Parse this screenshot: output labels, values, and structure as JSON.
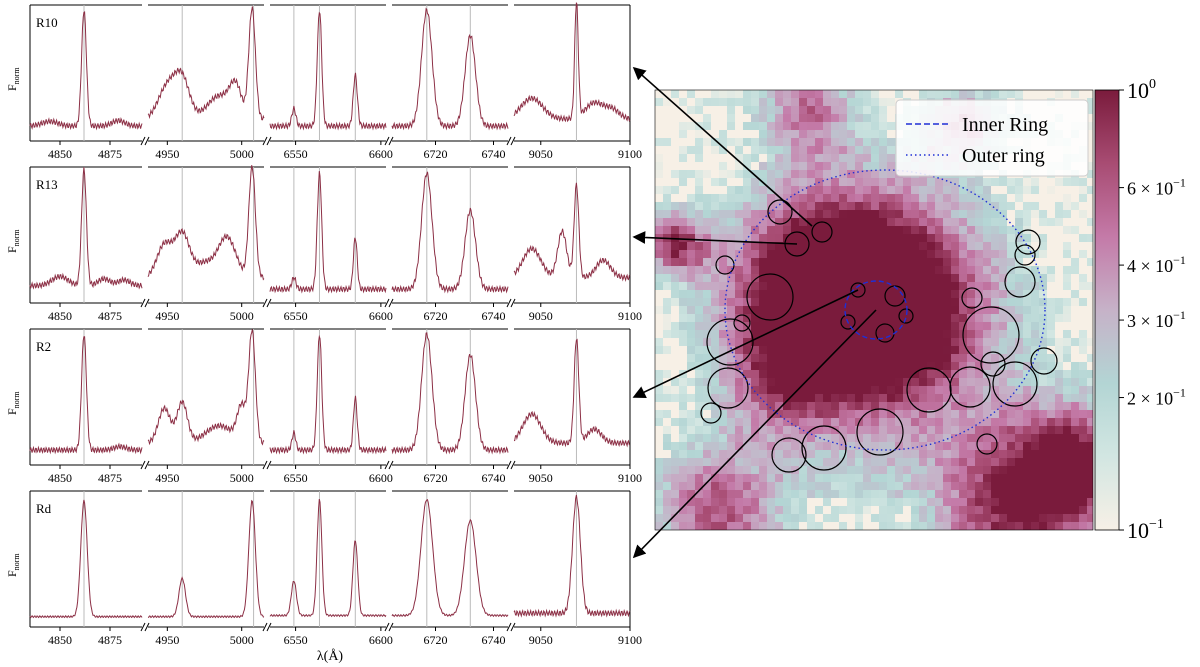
{
  "chart_data": [
    {
      "type": "line",
      "description": "Stacked normalized emission-line spectra of four regions, each split into five wavelength windows",
      "ylabel": "F",
      "ylabel_sub": "norm",
      "xlabel": "λ(Å)",
      "line_color": "#8c2f45",
      "windows": [
        {
          "range": [
            4835,
            4891
          ],
          "ticks": [
            4850,
            4875
          ],
          "markers": [
            4862
          ]
        },
        {
          "range": [
            4937,
            5015
          ],
          "ticks": [
            4950,
            5000
          ],
          "markers": [
            4960,
            5008
          ]
        },
        {
          "range": [
            6535,
            6603
          ],
          "ticks": [
            6550,
            6600
          ],
          "markers": [
            6549,
            6564,
            6585
          ]
        },
        {
          "range": [
            6705,
            6745
          ],
          "ticks": [
            6720,
            6740
          ],
          "markers": [
            6717,
            6732
          ]
        },
        {
          "range": [
            9035,
            9100
          ],
          "ticks": [
            9050,
            9100
          ],
          "markers": [
            9070
          ]
        }
      ],
      "panels": [
        {
          "label": "R10",
          "profiles": [
            {
              "base": 0.06,
              "lines": [
                [
                  4862,
                  1.0,
                  1.2
                ],
                [
                  4878,
                  0.02,
                  3
                ]
              ],
              "bumps": [
                [
                  4845,
                  0.04,
                  4
                ],
                [
                  4880,
                  0.03,
                  3
                ]
              ]
            },
            {
              "base": 0.12,
              "lines": [
                [
                  4960,
                  0.33,
                  5
                ],
                [
                  5007,
                  0.95,
                  2.2
                ],
                [
                  4950,
                  0.28,
                  6
                ]
              ],
              "bumps": [
                [
                  4985,
                  0.2,
                  8
                ],
                [
                  4996,
                  0.25,
                  4
                ]
              ]
            },
            {
              "base": 0.06,
              "lines": [
                [
                  6549,
                  0.15,
                  1.2
                ],
                [
                  6564,
                  1.0,
                  1.3
                ],
                [
                  6585,
                  0.44,
                  1.2
                ]
              ],
              "bumps": []
            },
            {
              "base": 0.06,
              "lines": [
                [
                  6717,
                  1.0,
                  1.8
                ],
                [
                  6732,
                  0.78,
                  1.8
                ]
              ],
              "bumps": []
            },
            {
              "base": 0.12,
              "lines": [
                [
                  9070,
                  1.0,
                  1.0
                ]
              ],
              "bumps": [
                [
                  9045,
                  0.18,
                  6
                ],
                [
                  9080,
                  0.14,
                  5
                ],
                [
                  9090,
                  0.08,
                  4
                ]
              ]
            }
          ]
        },
        {
          "label": "R13",
          "profiles": [
            {
              "base": 0.08,
              "lines": [
                [
                  4862,
                  1.0,
                  1.2
                ]
              ],
              "bumps": [
                [
                  4850,
                  0.08,
                  4
                ],
                [
                  4872,
                  0.06,
                  3
                ],
                [
                  4882,
                  0.05,
                  3
                ]
              ]
            },
            {
              "base": 0.15,
              "lines": [
                [
                  4960,
                  0.38,
                  5
                ],
                [
                  5007,
                  0.95,
                  2.2
                ],
                [
                  4948,
                  0.28,
                  5
                ]
              ],
              "bumps": [
                [
                  4990,
                  0.35,
                  6
                ],
                [
                  4975,
                  0.12,
                  6
                ]
              ]
            },
            {
              "base": 0.05,
              "lines": [
                [
                  6549,
                  0.1,
                  1.2
                ],
                [
                  6564,
                  1.0,
                  1.3
                ],
                [
                  6585,
                  0.45,
                  1.1
                ]
              ],
              "bumps": []
            },
            {
              "base": 0.05,
              "lines": [
                [
                  6717,
                  1.0,
                  1.8
                ],
                [
                  6732,
                  0.68,
                  1.8
                ]
              ],
              "bumps": []
            },
            {
              "base": 0.15,
              "lines": [
                [
                  9070,
                  0.8,
                  1.3
                ]
              ],
              "bumps": [
                [
                  9045,
                  0.25,
                  5
                ],
                [
                  9062,
                  0.4,
                  2.5
                ],
                [
                  9085,
                  0.15,
                  4
                ]
              ]
            }
          ]
        },
        {
          "label": "R2",
          "profiles": [
            {
              "base": 0.06,
              "lines": [
                [
                  4862,
                  1.0,
                  1.2
                ]
              ],
              "bumps": [
                [
                  4880,
                  0.03,
                  3
                ]
              ]
            },
            {
              "base": 0.12,
              "lines": [
                [
                  4960,
                  0.35,
                  3.5
                ],
                [
                  5007,
                  0.95,
                  2.2
                ],
                [
                  4948,
                  0.3,
                  4
                ]
              ],
              "bumps": [
                [
                  4985,
                  0.15,
                  9
                ],
                [
                  5000,
                  0.3,
                  3
                ]
              ]
            },
            {
              "base": 0.06,
              "lines": [
                [
                  6549,
                  0.15,
                  1.1
                ],
                [
                  6564,
                  1.0,
                  1.3
                ],
                [
                  6585,
                  0.45,
                  1.1
                ]
              ],
              "bumps": []
            },
            {
              "base": 0.06,
              "lines": [
                [
                  6717,
                  1.0,
                  1.8
                ],
                [
                  6732,
                  0.82,
                  1.8
                ]
              ],
              "bumps": []
            },
            {
              "base": 0.12,
              "lines": [
                [
                  9070,
                  0.9,
                  1.3
                ]
              ],
              "bumps": [
                [
                  9045,
                  0.25,
                  5
                ],
                [
                  9080,
                  0.12,
                  4
                ]
              ]
            }
          ]
        },
        {
          "label": "Rd",
          "profiles": [
            {
              "base": 0.02,
              "lines": [
                [
                  4862,
                  1.0,
                  1.6
                ]
              ],
              "bumps": []
            },
            {
              "base": 0.02,
              "lines": [
                [
                  4960,
                  0.33,
                  2.2
                ],
                [
                  5007,
                  1.0,
                  2.2
                ]
              ],
              "bumps": []
            },
            {
              "base": 0.03,
              "lines": [
                [
                  6549,
                  0.3,
                  1.5
                ],
                [
                  6564,
                  1.0,
                  1.4
                ],
                [
                  6585,
                  0.65,
                  1.4
                ]
              ],
              "bumps": []
            },
            {
              "base": 0.03,
              "lines": [
                [
                  6717,
                  1.0,
                  2.0
                ],
                [
                  6732,
                  0.82,
                  2.0
                ]
              ],
              "bumps": []
            },
            {
              "base": 0.05,
              "lines": [
                [
                  9070,
                  1.0,
                  2.2
                ]
              ],
              "bumps": []
            }
          ]
        }
      ]
    },
    {
      "type": "heatmap",
      "description": "Normalized flux map with apertures, inner and outer rings",
      "colorbar": {
        "scale": "log",
        "range": [
          0.1,
          1.0
        ],
        "ticks": [
          {
            "value": 0.2,
            "label": "2 × 10",
            "exp": "−1"
          },
          {
            "value": 0.3,
            "label": "3 × 10",
            "exp": "−1"
          },
          {
            "value": 0.4,
            "label": "4 × 10",
            "exp": "−1"
          },
          {
            "value": 0.6,
            "label": "6 × 10",
            "exp": "−1"
          }
        ],
        "end_labels": [
          {
            "value": 1.0,
            "label": "10",
            "exp": "0"
          },
          {
            "value": 0.1,
            "label": "10",
            "exp": "−1"
          }
        ],
        "colors": [
          "#f7f0e6",
          "#d2e6e2",
          "#b3d5d4",
          "#c6b2c8",
          "#c47aa8",
          "#a84c73",
          "#7a1b3c"
        ]
      },
      "legend": [
        {
          "label": "Inner Ring",
          "style": "dashed",
          "color": "#1f2fd6"
        },
        {
          "label": "Outer ring",
          "style": "dotted",
          "color": "#1f2fd6"
        }
      ],
      "image_center": [
        0.5,
        0.5
      ],
      "emission_blobs": [
        [
          0.47,
          0.48,
          0.3,
          0.8
        ],
        [
          0.38,
          0.45,
          0.25,
          0.7
        ],
        [
          0.55,
          0.52,
          0.25,
          0.55
        ],
        [
          0.3,
          0.65,
          0.18,
          0.4
        ],
        [
          0.95,
          0.85,
          0.2,
          0.9
        ],
        [
          0.05,
          0.35,
          0.1,
          0.85
        ],
        [
          0.35,
          0.05,
          0.15,
          0.6
        ],
        [
          0.7,
          0.08,
          0.12,
          0.55
        ],
        [
          0.15,
          0.95,
          0.2,
          0.7
        ],
        [
          0.8,
          0.95,
          0.25,
          0.75
        ]
      ]
    }
  ]
}
